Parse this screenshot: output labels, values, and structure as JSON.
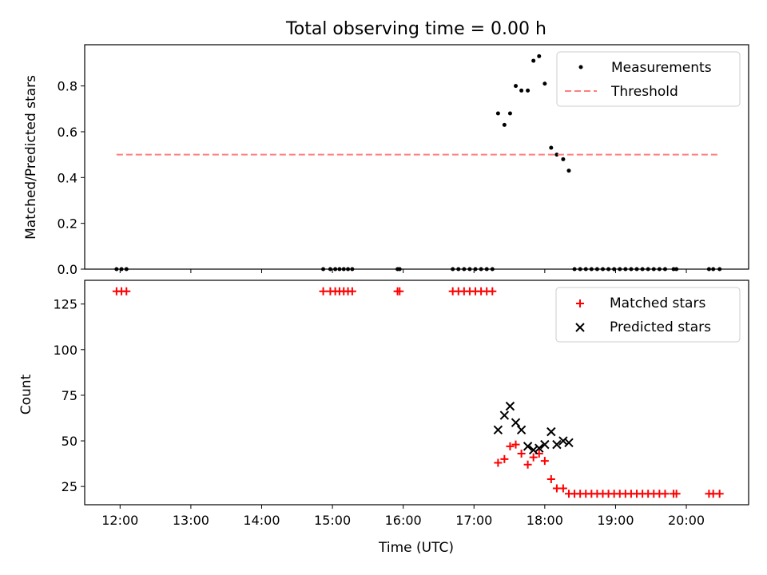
{
  "chart_data": [
    {
      "type": "scatter",
      "title": "Total observing time = 0.00 h",
      "xlabel": "",
      "ylabel": "Matched/Predicted stars",
      "ylim": [
        0,
        0.98
      ],
      "yticks": [
        0.0,
        0.2,
        0.4,
        0.6,
        0.8
      ],
      "ytick_labels": [
        "0.0",
        "0.2",
        "0.4",
        "0.6",
        "0.8"
      ],
      "xlim_hours": [
        11.5,
        20.88
      ],
      "legend_position": "top-right",
      "series": [
        {
          "name": "Measurements",
          "style": "dot",
          "color": "#000000",
          "points": [
            [
              11.95,
              0
            ],
            [
              12.02,
              0
            ],
            [
              12.09,
              0
            ],
            [
              14.87,
              0
            ],
            [
              14.97,
              0
            ],
            [
              15.04,
              0
            ],
            [
              15.1,
              0
            ],
            [
              15.16,
              0
            ],
            [
              15.22,
              0
            ],
            [
              15.28,
              0
            ],
            [
              15.92,
              0
            ],
            [
              15.95,
              0
            ],
            [
              16.7,
              0
            ],
            [
              16.78,
              0
            ],
            [
              16.86,
              0
            ],
            [
              16.94,
              0
            ],
            [
              17.02,
              0
            ],
            [
              17.1,
              0
            ],
            [
              17.18,
              0
            ],
            [
              17.26,
              0
            ],
            [
              17.34,
              0.68
            ],
            [
              17.43,
              0.63
            ],
            [
              17.51,
              0.68
            ],
            [
              17.59,
              0.8
            ],
            [
              17.67,
              0.78
            ],
            [
              17.76,
              0.78
            ],
            [
              17.84,
              0.91
            ],
            [
              17.92,
              0.93
            ],
            [
              18.0,
              0.81
            ],
            [
              18.09,
              0.53
            ],
            [
              18.17,
              0.5
            ],
            [
              18.26,
              0.48
            ],
            [
              18.34,
              0.43
            ],
            [
              18.42,
              0
            ],
            [
              18.5,
              0
            ],
            [
              18.58,
              0
            ],
            [
              18.66,
              0
            ],
            [
              18.74,
              0
            ],
            [
              18.82,
              0
            ],
            [
              18.9,
              0
            ],
            [
              18.98,
              0
            ],
            [
              19.06,
              0
            ],
            [
              19.14,
              0
            ],
            [
              19.22,
              0
            ],
            [
              19.3,
              0
            ],
            [
              19.38,
              0
            ],
            [
              19.46,
              0
            ],
            [
              19.54,
              0
            ],
            [
              19.62,
              0
            ],
            [
              19.7,
              0
            ],
            [
              19.82,
              0
            ],
            [
              19.86,
              0
            ],
            [
              20.32,
              0
            ],
            [
              20.38,
              0
            ],
            [
              20.47,
              0
            ]
          ]
        },
        {
          "name": "Threshold",
          "style": "dashed-line",
          "color": "#ff7f7f",
          "points": [
            [
              11.95,
              0.5
            ],
            [
              20.47,
              0.5
            ]
          ]
        }
      ]
    },
    {
      "type": "scatter",
      "title": "",
      "xlabel": "Time (UTC)",
      "ylabel": "Count",
      "ylim": [
        15,
        138
      ],
      "yticks": [
        25,
        50,
        75,
        100,
        125
      ],
      "ytick_labels": [
        "25",
        "50",
        "75",
        "100",
        "125"
      ],
      "xlim_hours": [
        11.5,
        20.88
      ],
      "xticks_hours": [
        12,
        13,
        14,
        15,
        16,
        17,
        18,
        19,
        20
      ],
      "xtick_labels": [
        "12:00",
        "13:00",
        "14:00",
        "15:00",
        "16:00",
        "17:00",
        "18:00",
        "19:00",
        "20:00"
      ],
      "legend_position": "top-right",
      "series": [
        {
          "name": "Matched stars",
          "style": "plus",
          "color": "#ff0000",
          "points": [
            [
              11.95,
              132
            ],
            [
              12.02,
              132
            ],
            [
              12.09,
              132
            ],
            [
              14.87,
              132
            ],
            [
              14.97,
              132
            ],
            [
              15.04,
              132
            ],
            [
              15.1,
              132
            ],
            [
              15.16,
              132
            ],
            [
              15.22,
              132
            ],
            [
              15.28,
              132
            ],
            [
              15.92,
              132
            ],
            [
              15.95,
              132
            ],
            [
              16.7,
              132
            ],
            [
              16.78,
              132
            ],
            [
              16.86,
              132
            ],
            [
              16.94,
              132
            ],
            [
              17.02,
              132
            ],
            [
              17.1,
              132
            ],
            [
              17.18,
              132
            ],
            [
              17.26,
              132
            ],
            [
              17.34,
              38
            ],
            [
              17.43,
              40
            ],
            [
              17.51,
              47
            ],
            [
              17.59,
              48
            ],
            [
              17.67,
              43
            ],
            [
              17.76,
              37
            ],
            [
              17.84,
              41
            ],
            [
              17.92,
              43
            ],
            [
              18.0,
              39
            ],
            [
              18.09,
              29
            ],
            [
              18.17,
              24
            ],
            [
              18.26,
              24
            ],
            [
              18.34,
              21
            ],
            [
              18.42,
              21
            ],
            [
              18.5,
              21
            ],
            [
              18.58,
              21
            ],
            [
              18.66,
              21
            ],
            [
              18.74,
              21
            ],
            [
              18.82,
              21
            ],
            [
              18.9,
              21
            ],
            [
              18.98,
              21
            ],
            [
              19.06,
              21
            ],
            [
              19.14,
              21
            ],
            [
              19.22,
              21
            ],
            [
              19.3,
              21
            ],
            [
              19.38,
              21
            ],
            [
              19.46,
              21
            ],
            [
              19.54,
              21
            ],
            [
              19.62,
              21
            ],
            [
              19.7,
              21
            ],
            [
              19.82,
              21
            ],
            [
              19.86,
              21
            ],
            [
              20.32,
              21
            ],
            [
              20.38,
              21
            ],
            [
              20.47,
              21
            ]
          ]
        },
        {
          "name": "Predicted stars",
          "style": "x",
          "color": "#000000",
          "points": [
            [
              17.34,
              56
            ],
            [
              17.43,
              64
            ],
            [
              17.51,
              69
            ],
            [
              17.59,
              60
            ],
            [
              17.67,
              56
            ],
            [
              17.76,
              47
            ],
            [
              17.84,
              45
            ],
            [
              17.92,
              46
            ],
            [
              18.0,
              48
            ],
            [
              18.09,
              55
            ],
            [
              18.17,
              48
            ],
            [
              18.26,
              50
            ],
            [
              18.34,
              49
            ]
          ]
        }
      ]
    }
  ]
}
